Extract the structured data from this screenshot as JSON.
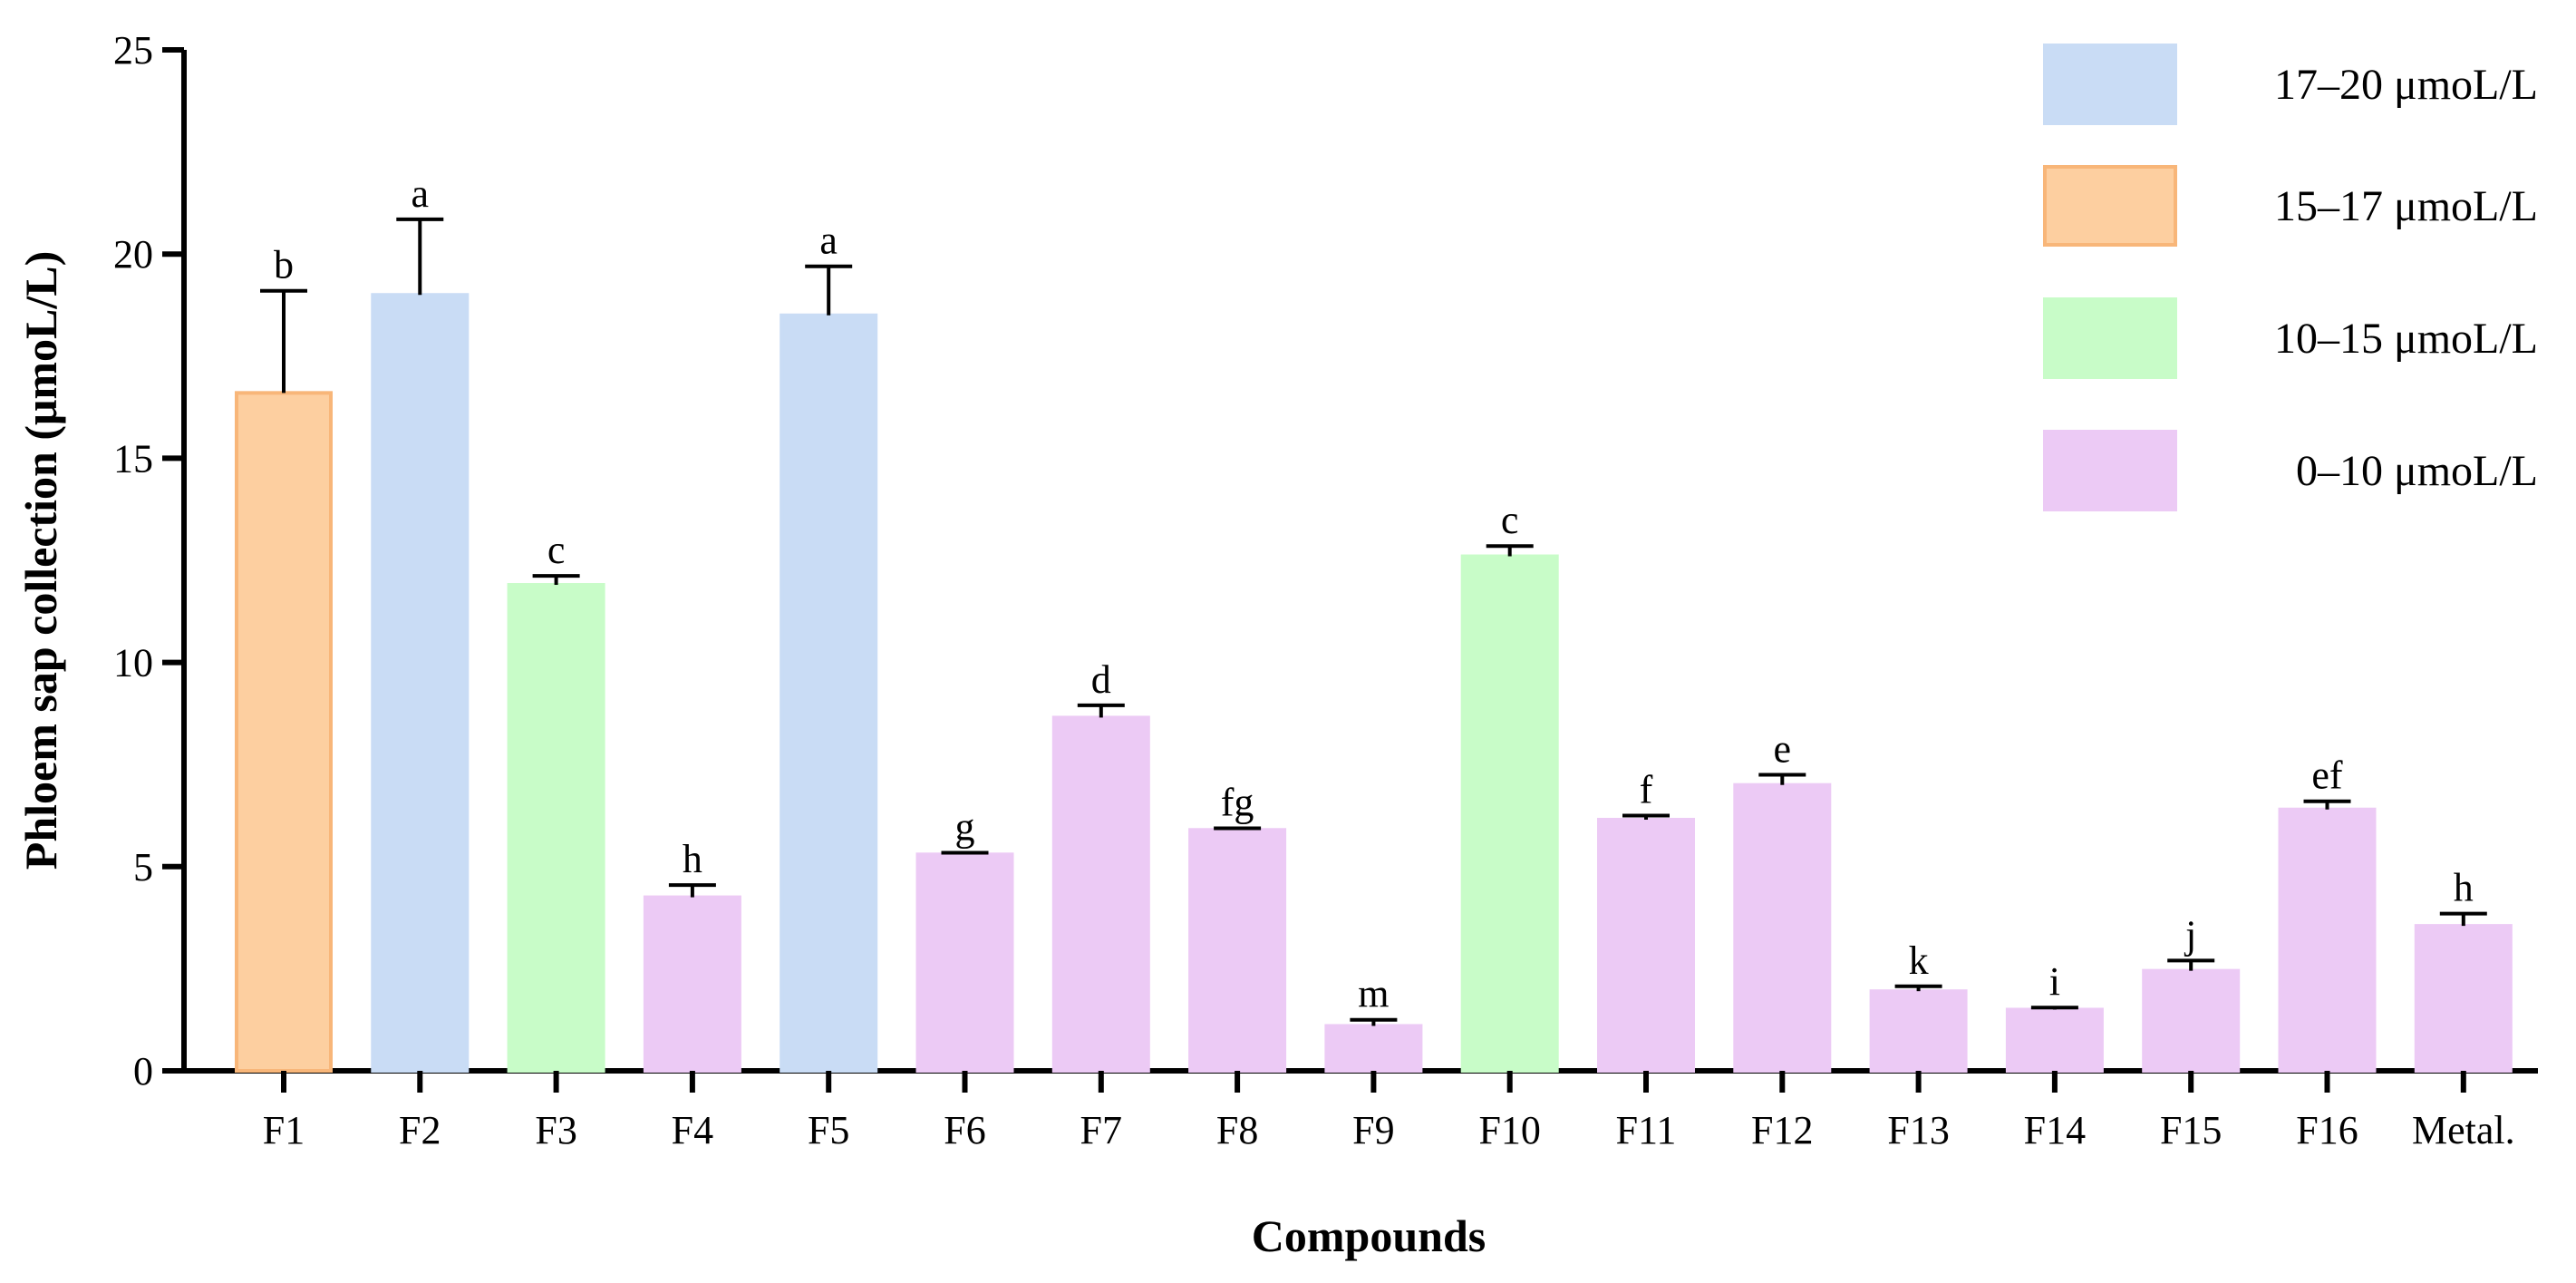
{
  "chart_data": {
    "type": "bar",
    "xlabel": "Compounds",
    "ylabel": "Phloem sap collection (μmoL/L)",
    "ylim": [
      0,
      25
    ],
    "yticks": [
      "0",
      "5",
      "10",
      "15",
      "20",
      "25"
    ],
    "grid": false,
    "legend_position": "top-right",
    "categories": [
      "F1",
      "F2",
      "F3",
      "F4",
      "F5",
      "F6",
      "F7",
      "F8",
      "F9",
      "F10",
      "F11",
      "F12",
      "F13",
      "F14",
      "F15",
      "F16",
      "Metal."
    ],
    "values": [
      16.6,
      19.0,
      11.9,
      4.25,
      18.5,
      5.3,
      8.65,
      5.9,
      1.1,
      12.6,
      6.15,
      7.0,
      1.95,
      1.5,
      2.45,
      6.4,
      3.55
    ],
    "errors": [
      2.5,
      1.85,
      0.22,
      0.3,
      1.2,
      0.04,
      0.3,
      0.04,
      0.15,
      0.25,
      0.1,
      0.25,
      0.12,
      0.05,
      0.25,
      0.2,
      0.3
    ],
    "significance": [
      "b",
      "a",
      "c",
      "h",
      "a",
      "g",
      "d",
      "fg",
      "m",
      "c",
      "f",
      "e",
      "k",
      "i",
      "j",
      "ef",
      "h"
    ],
    "groups": [
      1,
      0,
      2,
      3,
      0,
      3,
      3,
      3,
      3,
      2,
      3,
      3,
      3,
      3,
      3,
      3,
      3
    ],
    "legend": [
      {
        "label": "17–20 μmoL/L",
        "color": "#c9dcf5",
        "edge": "#c9dcf5"
      },
      {
        "label": "15–17 μmoL/L",
        "color": "#fdcfa0",
        "edge": "#f8b679"
      },
      {
        "label": "10–15 μmoL/L",
        "color": "#c8fcc8",
        "edge": "#c8fcc8"
      },
      {
        "label": "0–10 μmoL/L",
        "color": "#eccaf5",
        "edge": "#eccaf5"
      }
    ]
  }
}
